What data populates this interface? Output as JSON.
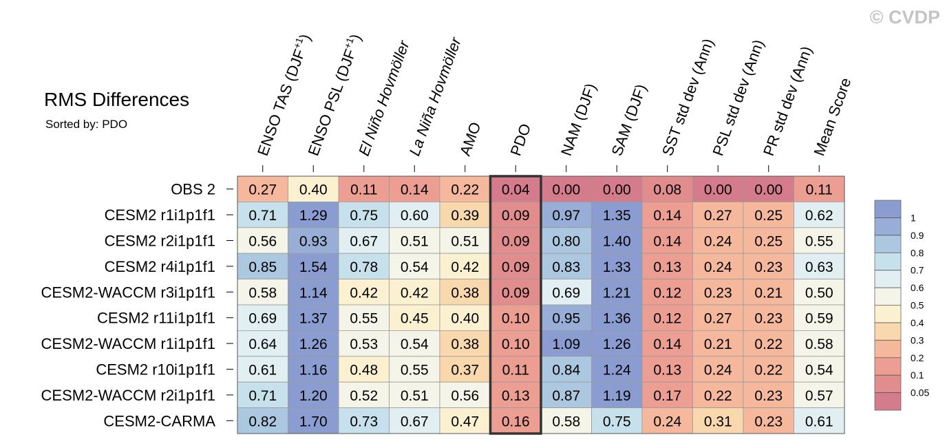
{
  "copyright": "© CVDP",
  "chart_data": {
    "type": "heatmap",
    "title": "RMS Differences",
    "subtitle": "Sorted by: PDO",
    "columns": [
      "ENSO TAS (DJF+1)",
      "ENSO PSL (DJF+1)",
      "El Niño Hovmöller",
      "La Niña Hovmöller",
      "AMO",
      "PDO",
      "NAM (DJF)",
      "SAM (DJF)",
      "SST std dev (Ann)",
      "PSL std dev (Ann)",
      "PR std dev (Ann)",
      "Mean Score"
    ],
    "column_parts": [
      {
        "base": "ENSO TAS (DJF",
        "sup": "+1",
        "tail": ")",
        "italic": false
      },
      {
        "base": "ENSO PSL (DJF",
        "sup": "+1",
        "tail": ")",
        "italic": false
      },
      {
        "base": "El Niño Hovmöller",
        "sup": "",
        "tail": "",
        "italic": true
      },
      {
        "base": "La Niña Hovmöller",
        "sup": "",
        "tail": "",
        "italic": true
      },
      {
        "base": "AMO",
        "sup": "",
        "tail": "",
        "italic": false
      },
      {
        "base": "PDO",
        "sup": "",
        "tail": "",
        "italic": false
      },
      {
        "base": "NAM (DJF)",
        "sup": "",
        "tail": "",
        "italic": false
      },
      {
        "base": "SAM (DJF)",
        "sup": "",
        "tail": "",
        "italic": false
      },
      {
        "base": "SST std dev (Ann)",
        "sup": "",
        "tail": "",
        "italic": false
      },
      {
        "base": "PSL std dev (Ann)",
        "sup": "",
        "tail": "",
        "italic": false
      },
      {
        "base": "PR std dev (Ann)",
        "sup": "",
        "tail": "",
        "italic": false
      },
      {
        "base": "Mean Score",
        "sup": "",
        "tail": "",
        "italic": false
      }
    ],
    "highlight_column": "PDO",
    "rows": [
      "OBS 2",
      "CESM2 r1i1p1f1",
      "CESM2 r2i1p1f1",
      "CESM2 r4i1p1f1",
      "CESM2-WACCM r3i1p1f1",
      "CESM2 r11i1p1f1",
      "CESM2-WACCM r1i1p1f1",
      "CESM2 r10i1p1f1",
      "CESM2-WACCM r2i1p1f1",
      "CESM2-CARMA"
    ],
    "values": [
      [
        "0.27",
        "0.40",
        "0.11",
        "0.14",
        "0.22",
        "0.04",
        "0.00",
        "0.00",
        "0.08",
        "0.00",
        "0.00",
        "0.11"
      ],
      [
        "0.71",
        "1.29",
        "0.75",
        "0.60",
        "0.39",
        "0.09",
        "0.97",
        "1.35",
        "0.14",
        "0.27",
        "0.25",
        "0.62"
      ],
      [
        "0.56",
        "0.93",
        "0.67",
        "0.51",
        "0.51",
        "0.09",
        "0.80",
        "1.40",
        "0.14",
        "0.24",
        "0.25",
        "0.55"
      ],
      [
        "0.85",
        "1.54",
        "0.78",
        "0.54",
        "0.42",
        "0.09",
        "0.83",
        "1.33",
        "0.13",
        "0.24",
        "0.23",
        "0.63"
      ],
      [
        "0.58",
        "1.14",
        "0.42",
        "0.42",
        "0.38",
        "0.09",
        "0.69",
        "1.21",
        "0.12",
        "0.23",
        "0.21",
        "0.50"
      ],
      [
        "0.69",
        "1.37",
        "0.55",
        "0.45",
        "0.40",
        "0.10",
        "0.95",
        "1.36",
        "0.12",
        "0.27",
        "0.23",
        "0.59"
      ],
      [
        "0.64",
        "1.26",
        "0.53",
        "0.54",
        "0.38",
        "0.10",
        "1.09",
        "1.26",
        "0.14",
        "0.21",
        "0.22",
        "0.58"
      ],
      [
        "0.61",
        "1.16",
        "0.48",
        "0.55",
        "0.37",
        "0.11",
        "0.84",
        "1.24",
        "0.13",
        "0.24",
        "0.22",
        "0.54"
      ],
      [
        "0.71",
        "1.20",
        "0.52",
        "0.51",
        "0.56",
        "0.13",
        "0.87",
        "1.19",
        "0.17",
        "0.22",
        "0.23",
        "0.57"
      ],
      [
        "0.82",
        "1.70",
        "0.73",
        "0.67",
        "0.47",
        "0.16",
        "0.58",
        "0.75",
        "0.24",
        "0.31",
        "0.23",
        "0.61"
      ]
    ],
    "colorbar": {
      "levels": [
        "1",
        "0.9",
        "0.8",
        "0.7",
        "0.6",
        "0.5",
        "0.4",
        "0.3",
        "0.2",
        "0.1",
        "0.05"
      ],
      "thresholds": [
        0.05,
        0.1,
        0.2,
        0.3,
        0.4,
        0.5,
        0.6,
        0.7,
        0.8,
        0.9,
        1.0
      ],
      "colors": [
        "#d47c8c",
        "#e18d8e",
        "#ec9e92",
        "#f5b89d",
        "#f9d8ad",
        "#fbf1d0",
        "#f4f4e8",
        "#e1eef2",
        "#c7e1ec",
        "#acc8e1",
        "#98aed6",
        "#8b9dd0"
      ]
    }
  }
}
